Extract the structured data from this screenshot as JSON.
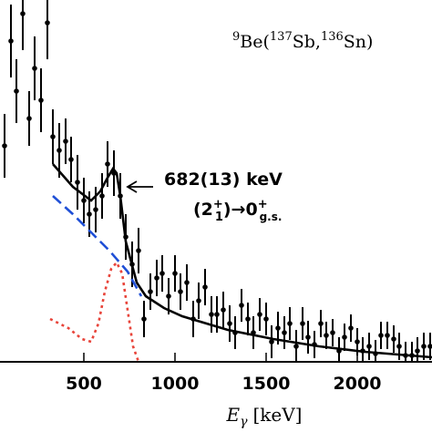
{
  "chart_data": {
    "type": "scatter",
    "xlim": [
      40,
      2410
    ],
    "ylim": [
      0,
      397
    ],
    "xticks": [
      500,
      1000,
      1500,
      2000
    ],
    "xlabel": [
      "E",
      "γ",
      "[keV]"
    ],
    "reaction": [
      "9",
      "Be(",
      "137",
      "Sb,",
      "136",
      "Sn)"
    ],
    "peak_label": "682(13) keV",
    "transition": [
      "(2",
      "+",
      "1",
      ")→0",
      "+",
      "g.s."
    ],
    "data": {
      "color": "#000000",
      "x": [
        65,
        100,
        130,
        165,
        200,
        230,
        265,
        300,
        330,
        365,
        400,
        430,
        465,
        500,
        530,
        565,
        600,
        630,
        665,
        700,
        730,
        765,
        800,
        830,
        865,
        900,
        930,
        965,
        1000,
        1030,
        1065,
        1100,
        1130,
        1165,
        1200,
        1230,
        1265,
        1300,
        1330,
        1365,
        1400,
        1430,
        1465,
        1500,
        1530,
        1565,
        1600,
        1630,
        1665,
        1700,
        1730,
        1765,
        1800,
        1830,
        1865,
        1900,
        1930,
        1965,
        2000,
        2030,
        2065,
        2100,
        2130,
        2165,
        2200,
        2230,
        2265,
        2300,
        2330,
        2365,
        2400
      ],
      "values": [
        237,
        352,
        297,
        382,
        267,
        322,
        287,
        372,
        247,
        232,
        242,
        222,
        197,
        177,
        162,
        167,
        182,
        217,
        207,
        182,
        137,
        107,
        122,
        47,
        77,
        92,
        97,
        72,
        97,
        77,
        87,
        47,
        67,
        82,
        52,
        52,
        57,
        42,
        32,
        62,
        47,
        32,
        52,
        47,
        22,
        37,
        32,
        42,
        17,
        42,
        27,
        19,
        42,
        29,
        32,
        12,
        27,
        37,
        22,
        12,
        17,
        9,
        29,
        29,
        25,
        17,
        7,
        7,
        12,
        17,
        17
      ],
      "errors": [
        35,
        40,
        35,
        40,
        30,
        35,
        35,
        40,
        30,
        30,
        25,
        25,
        30,
        25,
        25,
        25,
        25,
        25,
        25,
        25,
        25,
        25,
        25,
        20,
        20,
        20,
        20,
        20,
        20,
        20,
        20,
        20,
        20,
        20,
        20,
        20,
        20,
        20,
        18,
        18,
        18,
        18,
        18,
        18,
        18,
        18,
        18,
        18,
        18,
        18,
        18,
        15,
        15,
        15,
        15,
        15,
        15,
        15,
        15,
        15,
        15,
        15,
        15,
        15,
        15,
        15,
        15,
        15,
        15,
        15,
        15
      ]
    },
    "fits": [
      {
        "color": "#000000",
        "style": "solid",
        "x": [
          330,
          440,
          540,
          590,
          630,
          660,
          680,
          700,
          730,
          790,
          840,
          940,
          1040,
          1290,
          1540,
          1790,
          2040,
          2410
        ],
        "values": [
          217,
          192,
          177,
          187,
          202,
          212,
          207,
          182,
          132,
          87,
          72,
          59,
          50,
          35,
          25,
          17,
          11,
          5
        ]
      },
      {
        "color": "#1f4fd6",
        "style": "dashed",
        "x": [
          330,
          440,
          540,
          640,
          740,
          815
        ],
        "values": [
          182,
          162,
          142,
          122,
          99,
          72
        ]
      },
      {
        "color": "#e8443a",
        "style": "dotted",
        "x": [
          315,
          415,
          490,
          540,
          580,
          615,
          650,
          680,
          710,
          740,
          770,
          800
        ],
        "values": [
          47,
          37,
          25,
          22,
          42,
          77,
          102,
          109,
          97,
          57,
          17,
          0
        ]
      }
    ]
  }
}
